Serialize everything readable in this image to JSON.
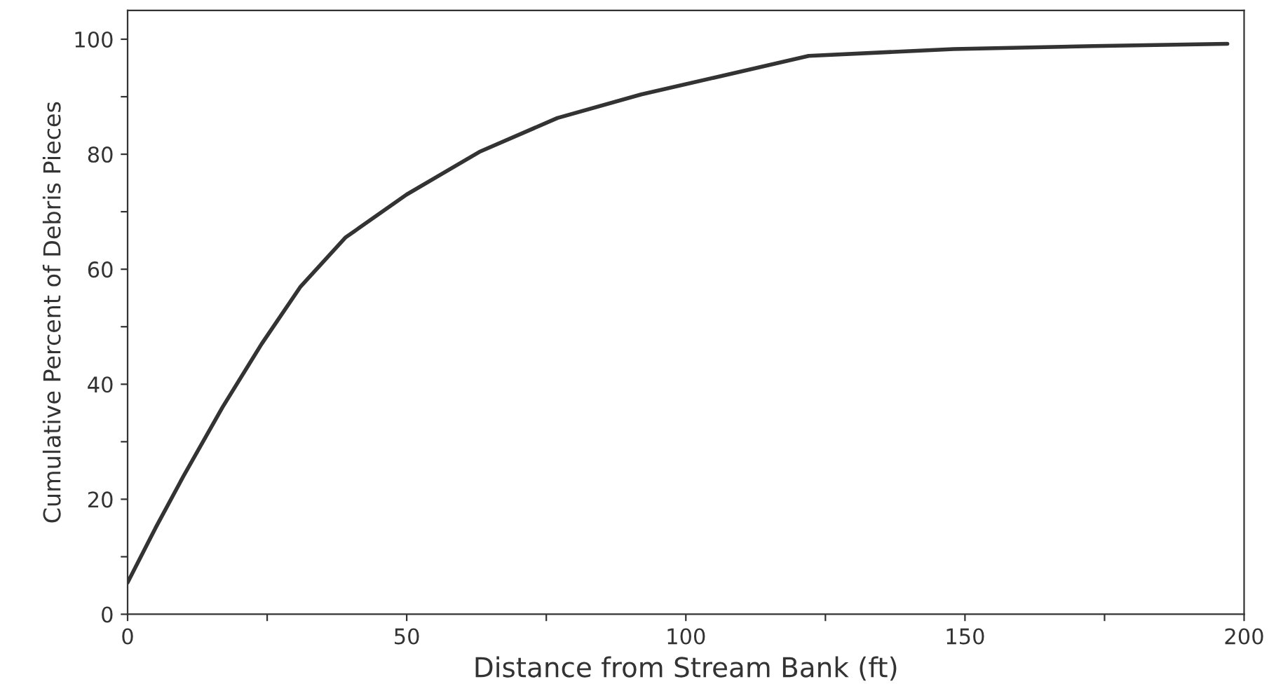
{
  "chart_data": {
    "type": "line",
    "xlabel": "Distance from Stream Bank (ft)",
    "ylabel": "Cumulative Percent of Debris Pieces",
    "series": [
      {
        "color": "#333333",
        "x": [
          0,
          5,
          10,
          17,
          24,
          31,
          39,
          50,
          63,
          77,
          92,
          105,
          122,
          148,
          173,
          197
        ],
        "values": [
          5.5,
          15,
          24,
          36,
          47,
          57,
          65.5,
          73,
          80.4,
          86.3,
          90.4,
          93.3,
          97.1,
          98.3,
          98.8,
          99.2
        ]
      }
    ],
    "xlim": [
      0,
      200
    ],
    "ylim": [
      0,
      105
    ],
    "xticks": [
      0,
      {
        "value": 25,
        "label": null
      },
      50,
      {
        "value": 75,
        "label": null
      },
      100,
      {
        "value": 125,
        "label": null
      },
      150,
      {
        "value": 175,
        "label": null
      },
      200
    ],
    "yticks": [
      0,
      {
        "value": 10,
        "label": null
      },
      20,
      {
        "value": 30,
        "label": null
      },
      40,
      {
        "value": 50,
        "label": null
      },
      60,
      {
        "value": 70,
        "label": null
      },
      80,
      {
        "value": 90,
        "label": null
      },
      100
    ],
    "grid": false,
    "legend": false,
    "marker": "none",
    "line_style": "solid"
  }
}
